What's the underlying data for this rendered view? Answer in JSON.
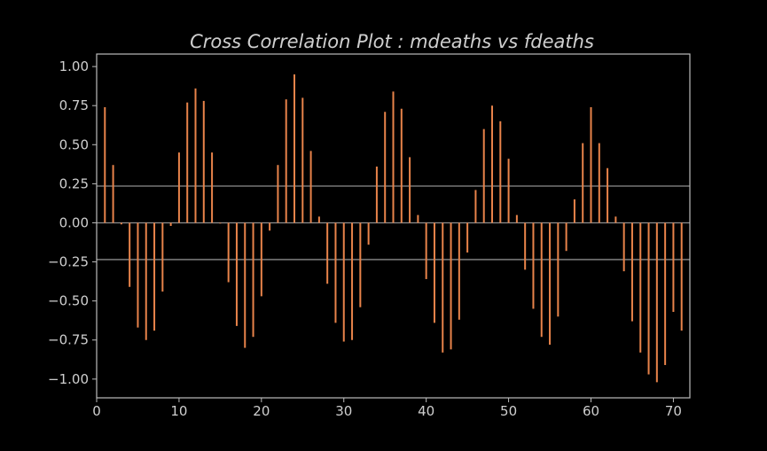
{
  "chart_data": {
    "type": "bar",
    "title": "Cross Correlation Plot :  mdeaths vs fdeaths",
    "xlabel": "",
    "ylabel": "",
    "xlim": [
      0,
      72
    ],
    "ylim": [
      -1.12,
      1.08
    ],
    "x_ticks": [
      0,
      10,
      20,
      30,
      40,
      50,
      60,
      70
    ],
    "x_tick_labels": [
      "0",
      "10",
      "20",
      "30",
      "40",
      "50",
      "60",
      "70"
    ],
    "y_ticks": [
      1.0,
      0.75,
      0.5,
      0.25,
      0.0,
      -0.25,
      -0.5,
      -0.75,
      -1.0
    ],
    "y_tick_labels": [
      "1.00",
      "0.75",
      "0.50",
      "0.25",
      "0.00",
      "−0.25",
      "−0.50",
      "−0.75",
      "−1.00"
    ],
    "reference_lines": [
      0.235,
      0.0,
      -0.235
    ],
    "grid": false,
    "legend": "none",
    "colors": {
      "background": "#000000",
      "bar": "#e8834a",
      "axes": "#bcbcbc",
      "reference_line": "#8c8c8c",
      "text": "#cfcfcf"
    },
    "x": [
      1,
      2,
      3,
      4,
      5,
      6,
      7,
      8,
      9,
      10,
      11,
      12,
      13,
      14,
      15,
      16,
      17,
      18,
      19,
      20,
      21,
      22,
      23,
      24,
      25,
      26,
      27,
      28,
      29,
      30,
      31,
      32,
      33,
      34,
      35,
      36,
      37,
      38,
      39,
      40,
      41,
      42,
      43,
      44,
      45,
      46,
      47,
      48,
      49,
      50,
      51,
      52,
      53,
      54,
      55,
      56,
      57,
      58,
      59,
      60,
      61,
      62,
      63,
      64,
      65,
      66,
      67,
      68,
      69,
      70,
      71
    ],
    "values": [
      0.74,
      0.37,
      -0.01,
      -0.41,
      -0.67,
      -0.75,
      -0.69,
      -0.44,
      -0.02,
      0.45,
      0.77,
      0.86,
      0.78,
      0.45,
      0.0,
      -0.38,
      -0.66,
      -0.8,
      -0.73,
      -0.47,
      -0.05,
      0.37,
      0.79,
      0.95,
      0.8,
      0.46,
      0.04,
      -0.39,
      -0.64,
      -0.76,
      -0.75,
      -0.54,
      -0.14,
      0.36,
      0.71,
      0.84,
      0.73,
      0.42,
      0.05,
      -0.36,
      -0.64,
      -0.83,
      -0.81,
      -0.62,
      -0.19,
      0.21,
      0.6,
      0.75,
      0.65,
      0.41,
      0.05,
      -0.3,
      -0.55,
      -0.73,
      -0.78,
      -0.6,
      -0.18,
      0.15,
      0.51,
      0.74,
      0.51,
      0.35,
      0.04,
      -0.31,
      -0.63,
      -0.83,
      -0.97,
      -1.02,
      -0.91,
      -0.57,
      -0.69
    ]
  }
}
